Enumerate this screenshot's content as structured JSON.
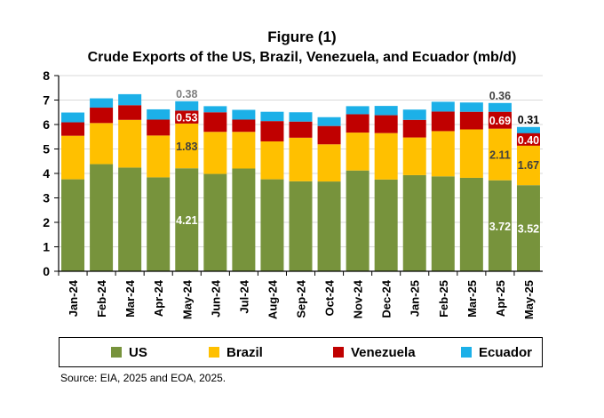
{
  "figure": {
    "label": "Figure (1)",
    "title": "Crude Exports of the US, Brazil,  Venezuela, and Ecuador (mb/d)"
  },
  "source": "Source: EIA, 2025 and EOA, 2025.",
  "chart_data": {
    "type": "stacked-bar",
    "title": "Crude Exports of the US, Brazil,  Venezuela, and Ecuador (mb/d)",
    "xlabel": "",
    "ylabel": "",
    "ylim": [
      0,
      8
    ],
    "yticks": [
      "0",
      "1",
      "2",
      "3",
      "4",
      "5",
      "6",
      "7",
      "8"
    ],
    "grid": true,
    "legend_position": "bottom",
    "categories": [
      "Jan-24",
      "Feb-24",
      "Mar-24",
      "Apr-24",
      "May-24",
      "Jun-24",
      "Jul-24",
      "Aug-24",
      "Sep-24",
      "Oct-24",
      "Nov-24",
      "Dec-24",
      "Jan-25",
      "Feb-25",
      "Mar-25",
      "Apr-25",
      "May-25"
    ],
    "series": [
      {
        "name": "US",
        "color": "#77933C",
        "values": [
          3.76,
          4.38,
          4.24,
          3.84,
          4.21,
          3.98,
          4.2,
          3.76,
          3.68,
          3.67,
          4.12,
          3.75,
          3.93,
          3.88,
          3.82,
          3.72,
          3.52
        ]
      },
      {
        "name": "Brazil",
        "color": "#FFC000",
        "values": [
          1.78,
          1.68,
          1.95,
          1.71,
          1.83,
          1.72,
          1.5,
          1.55,
          1.78,
          1.52,
          1.55,
          1.9,
          1.54,
          1.85,
          1.98,
          2.11,
          1.67
        ]
      },
      {
        "name": "Venezuela",
        "color": "#C00000",
        "values": [
          0.55,
          0.63,
          0.6,
          0.65,
          0.53,
          0.8,
          0.5,
          0.83,
          0.66,
          0.75,
          0.75,
          0.73,
          0.72,
          0.8,
          0.72,
          0.69,
          0.4
        ]
      },
      {
        "name": "Ecuador",
        "color": "#1CB0E8",
        "values": [
          0.4,
          0.38,
          0.45,
          0.42,
          0.38,
          0.25,
          0.4,
          0.38,
          0.38,
          0.36,
          0.33,
          0.38,
          0.42,
          0.4,
          0.38,
          0.36,
          0.31
        ]
      }
    ],
    "data_labels": [
      {
        "category": "May-24",
        "series": "US",
        "text": "4.21",
        "color": "#FFFFFF"
      },
      {
        "category": "May-24",
        "series": "Brazil",
        "text": "1.83",
        "color": "#404040"
      },
      {
        "category": "May-24",
        "series": "Venezuela",
        "text": "0.53",
        "color": "#FFFFFF"
      },
      {
        "category": "May-24",
        "series": "Ecuador",
        "text": "0.38",
        "color": "#7F7F7F"
      },
      {
        "category": "Apr-25",
        "series": "US",
        "text": "3.72",
        "color": "#FFFFFF"
      },
      {
        "category": "Apr-25",
        "series": "Brazil",
        "text": "2.11",
        "color": "#404040"
      },
      {
        "category": "Apr-25",
        "series": "Venezuela",
        "text": "0.69",
        "color": "#FFFFFF"
      },
      {
        "category": "Apr-25",
        "series": "Ecuador",
        "text": "0.36",
        "color": "#404040"
      },
      {
        "category": "May-25",
        "series": "US",
        "text": "3.52",
        "color": "#FFFFFF"
      },
      {
        "category": "May-25",
        "series": "Brazil",
        "text": "1.67",
        "color": "#404040"
      },
      {
        "category": "May-25",
        "series": "Venezuela",
        "text": "0.40",
        "color": "#FFFFFF"
      },
      {
        "category": "May-25",
        "series": "Ecuador",
        "text": "0.31",
        "color": "#000000"
      }
    ]
  }
}
